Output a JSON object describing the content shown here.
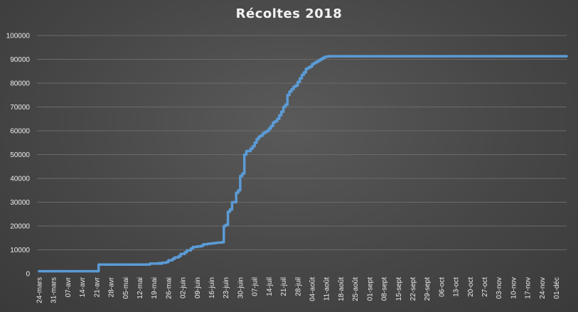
{
  "chart_data": {
    "type": "line",
    "title": "Récoltes 2018",
    "xlabel": "",
    "ylabel": "",
    "ylim": [
      0,
      100000
    ],
    "yticks": [
      0,
      10000,
      20000,
      30000,
      40000,
      50000,
      60000,
      70000,
      80000,
      90000,
      100000
    ],
    "grid": true,
    "legend": "none",
    "line_color": "#5b9bd5",
    "x_tick_labels": [
      "24-mars",
      "31-mars",
      "07-avr",
      "14-avr",
      "21-avr",
      "28-avr",
      "05-mai",
      "12-mai",
      "19-mai",
      "26-mai",
      "02-juin",
      "09-juin",
      "16-juin",
      "23-juin",
      "30-juin",
      "07-juil",
      "14-juil",
      "21-juil",
      "28-juil",
      "04-août",
      "11-août",
      "18-août",
      "25-août",
      "01-sept",
      "08-sept",
      "15-sept",
      "22-sept",
      "29-sept",
      "06-oct",
      "13-oct",
      "20-oct",
      "27-oct",
      "03-nov",
      "10-nov",
      "17-nov",
      "24-nov",
      "01-déc"
    ],
    "series": [
      {
        "x": [
          0,
          28,
          29,
          52,
          54,
          60,
          56,
          58,
          60,
          62,
          63,
          65,
          66,
          68,
          69,
          71,
          72,
          74,
          75,
          77,
          79,
          80,
          82,
          83,
          84,
          85,
          86,
          87,
          88,
          89,
          90,
          91,
          92,
          93,
          94,
          96,
          97,
          98,
          99,
          100,
          101,
          103,
          104,
          105,
          106,
          107,
          108,
          109,
          110,
          111,
          112,
          113,
          114,
          115,
          116,
          117,
          118,
          119,
          120,
          121,
          122,
          123,
          124,
          125,
          126,
          127,
          128,
          129,
          130,
          131,
          132,
          133,
          134,
          135,
          136,
          137,
          138,
          139,
          140,
          141,
          142,
          143,
          144,
          145,
          146,
          147,
          148,
          149,
          150,
          151,
          152,
          153,
          154,
          257
        ],
        "y": [
          1000,
          1000,
          3800,
          3800,
          4200,
          4200,
          4200,
          4400,
          4600,
          4800,
          5600,
          6200,
          6800,
          7400,
          8300,
          9000,
          9800,
          10600,
          11200,
          11400,
          11700,
          12300,
          12500,
          12600,
          12700,
          12800,
          12900,
          13000,
          13000,
          13200,
          20000,
          20500,
          26000,
          27000,
          30000,
          34000,
          35000,
          41000,
          42000,
          50000,
          51500,
          52500,
          53500,
          55000,
          56500,
          57500,
          58000,
          59000,
          59500,
          60000,
          61000,
          62000,
          63500,
          64000,
          65000,
          66500,
          68000,
          70000,
          71000,
          75000,
          76500,
          77500,
          78500,
          79000,
          80500,
          82000,
          83500,
          84500,
          86000,
          86500,
          87000,
          88000,
          88500,
          89000,
          89500,
          90000,
          90500,
          91000,
          91200,
          91300,
          91300,
          91300,
          91300,
          91300,
          91300,
          91300,
          91300,
          91300,
          91300,
          91300,
          91300,
          91300,
          91300,
          91300
        ]
      }
    ]
  }
}
